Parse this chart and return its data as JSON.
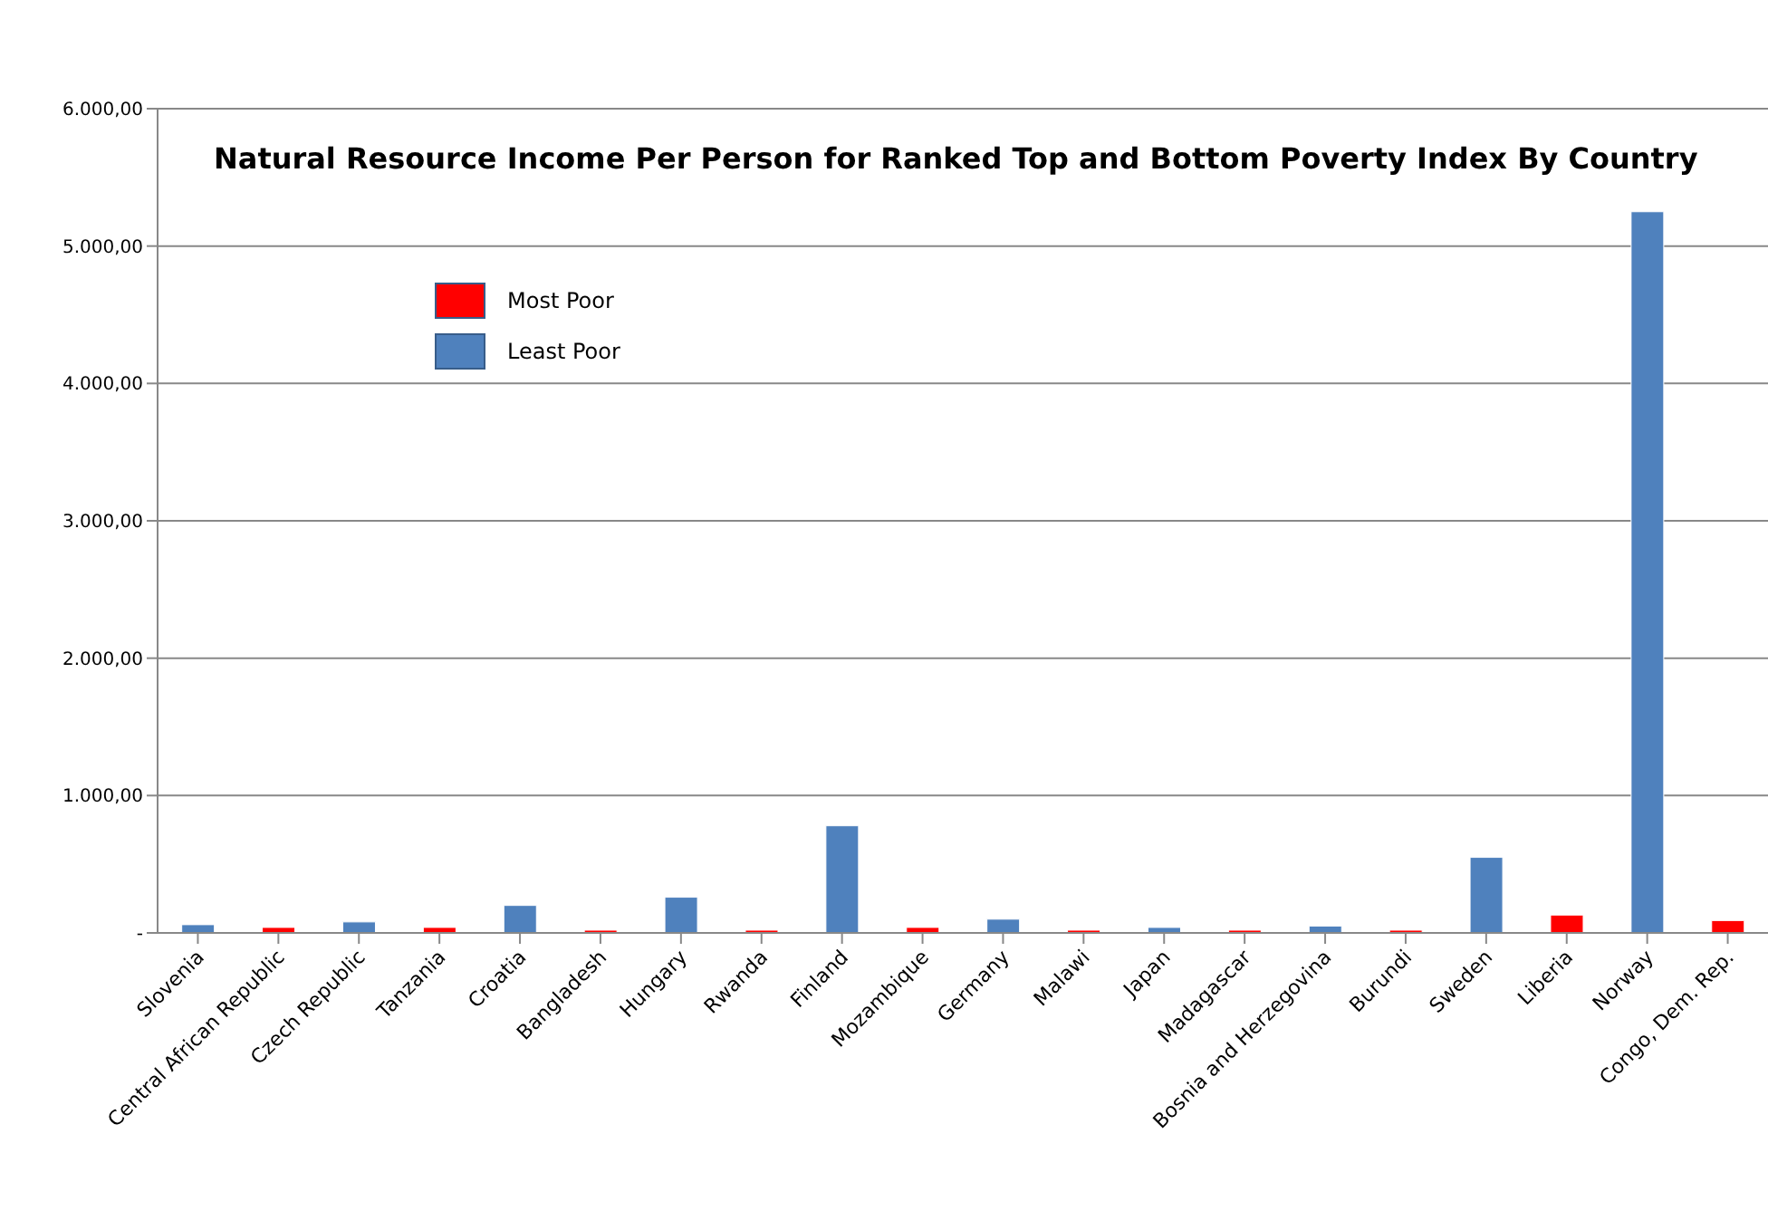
{
  "chart_data": {
    "type": "bar",
    "title": "Natural Resource Income Per Person for Ranked Top and Bottom Poverty Index By Country",
    "categories": [
      "Slovenia",
      "Central African Republic",
      "Czech Republic",
      "Tanzania",
      "Croatia",
      "Bangladesh",
      "Hungary",
      "Rwanda",
      "Finland",
      "Mozambique",
      "Germany",
      "Malawi",
      "Japan",
      "Madagascar",
      "Bosnia and Herzegovina",
      "Burundi",
      "Sweden",
      "Liberia",
      "Norway",
      "Congo, Dem. Rep."
    ],
    "series": [
      {
        "name": "Most Poor",
        "color": "#ff0000",
        "values": [
          null,
          40,
          null,
          40,
          null,
          20,
          null,
          20,
          null,
          40,
          null,
          20,
          null,
          20,
          null,
          20,
          null,
          130,
          null,
          90
        ]
      },
      {
        "name": "Least Poor",
        "color": "#4f81bd",
        "values": [
          60,
          null,
          80,
          null,
          200,
          null,
          260,
          null,
          780,
          null,
          100,
          null,
          40,
          null,
          50,
          null,
          550,
          null,
          5250,
          null
        ]
      }
    ],
    "stacked": true,
    "ylim": [
      0,
      6000
    ],
    "yticks": [
      {
        "value": 0,
        "label": "-"
      },
      {
        "value": 1000,
        "label": "1.000,00"
      },
      {
        "value": 2000,
        "label": "2.000,00"
      },
      {
        "value": 3000,
        "label": "3.000,00"
      },
      {
        "value": 4000,
        "label": "4.000,00"
      },
      {
        "value": 5000,
        "label": "5.000,00"
      },
      {
        "value": 6000,
        "label": "6.000,00"
      }
    ],
    "grid": "y",
    "legend": "top left"
  }
}
